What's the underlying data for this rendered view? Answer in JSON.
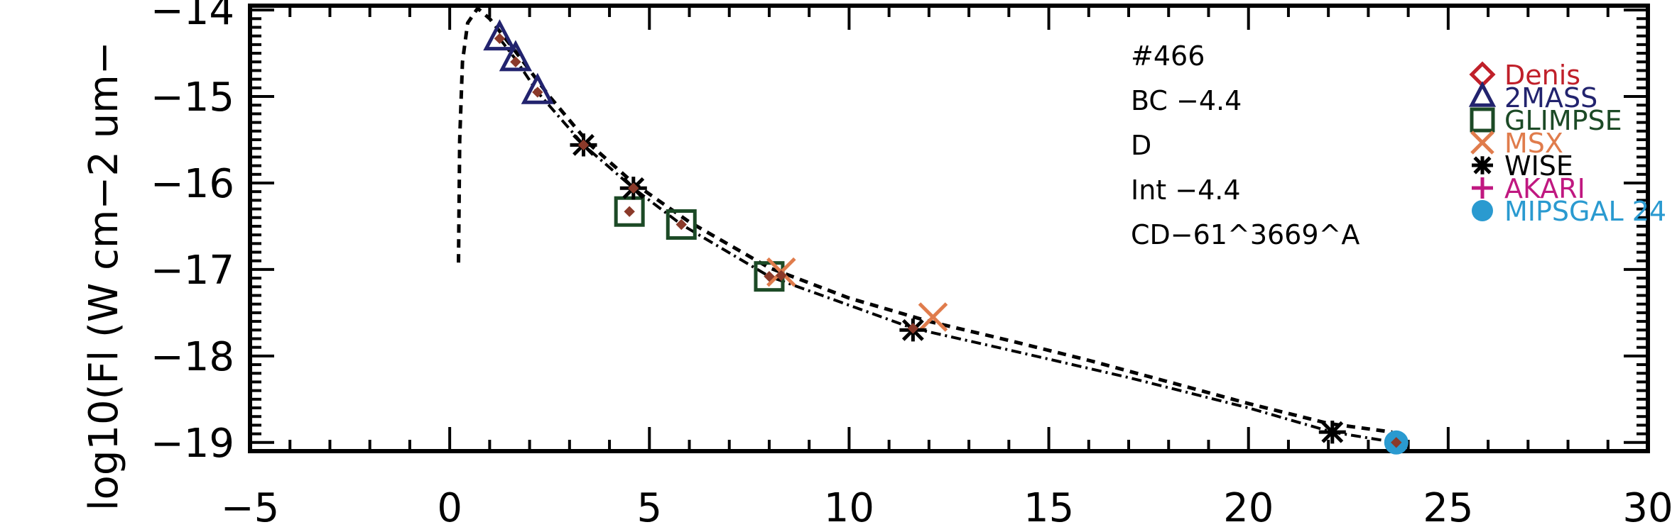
{
  "chart_data": {
    "type": "scatter",
    "title": "",
    "xlabel": "",
    "ylabel": "log10(Fl (W cm−2 um−",
    "xlim": [
      -5,
      30
    ],
    "ylim": [
      -19.1,
      -13.95
    ],
    "x_ticks": [
      -5,
      0,
      5,
      10,
      15,
      20,
      25,
      30
    ],
    "x_tick_labels": [
      "−5",
      "0",
      "5",
      "10",
      "15",
      "20",
      "25",
      "30"
    ],
    "y_ticks": [
      -19,
      -18,
      -17,
      -16,
      -15,
      -14
    ],
    "y_tick_labels": [
      "−19",
      "−18",
      "−17",
      "−16",
      "−15",
      "−14"
    ],
    "grid": false,
    "legend_placement": "top-right",
    "annotations": [
      "#466",
      "BC −4.4",
      "D",
      "Int −4.4",
      "CD−61^3669^A"
    ],
    "series": [
      {
        "name": "Denis",
        "marker": "diamond-open",
        "color": "#c0202a",
        "points": []
      },
      {
        "name": "2MASS",
        "marker": "triangle-open",
        "color": "#22236e",
        "points": [
          {
            "x": 1.25,
            "y": -14.33
          },
          {
            "x": 1.65,
            "y": -14.57
          },
          {
            "x": 2.2,
            "y": -14.95
          }
        ]
      },
      {
        "name": "GLIMPSE",
        "marker": "square-open",
        "color": "#1c4a26",
        "points": [
          {
            "x": 4.5,
            "y": -16.33
          },
          {
            "x": 5.8,
            "y": -16.48
          },
          {
            "x": 8.0,
            "y": -17.08
          }
        ]
      },
      {
        "name": "MSX",
        "marker": "x",
        "color": "#e07c4c",
        "points": [
          {
            "x": 8.3,
            "y": -17.03
          },
          {
            "x": 12.1,
            "y": -17.55
          }
        ]
      },
      {
        "name": "WISE",
        "marker": "asterisk",
        "color": "#000000",
        "points": [
          {
            "x": 3.35,
            "y": -15.56
          },
          {
            "x": 4.6,
            "y": -16.06
          },
          {
            "x": 11.6,
            "y": -17.7
          },
          {
            "x": 22.1,
            "y": -18.88
          }
        ]
      },
      {
        "name": "AKARI",
        "marker": "plus",
        "color": "#c01880",
        "points": []
      },
      {
        "name": "MIPSGAL 24",
        "marker": "circle-filled",
        "color": "#2a9ad0",
        "points": [
          {
            "x": 23.7,
            "y": -19.0
          }
        ]
      }
    ],
    "model_points": {
      "marker": "diamond-filled",
      "color": "#8b3a2a",
      "points": [
        {
          "x": 1.25,
          "y": -14.33
        },
        {
          "x": 1.65,
          "y": -14.6
        },
        {
          "x": 2.2,
          "y": -14.95
        },
        {
          "x": 3.35,
          "y": -15.56
        },
        {
          "x": 4.5,
          "y": -16.33
        },
        {
          "x": 4.6,
          "y": -16.06
        },
        {
          "x": 5.8,
          "y": -16.48
        },
        {
          "x": 8.0,
          "y": -17.08
        },
        {
          "x": 8.3,
          "y": -17.07
        },
        {
          "x": 11.6,
          "y": -17.68
        },
        {
          "x": 23.7,
          "y": -19.0
        }
      ]
    },
    "dashed_curve": [
      {
        "x": 0.22,
        "y": -16.92
      },
      {
        "x": 0.25,
        "y": -15.5
      },
      {
        "x": 0.32,
        "y": -14.6
      },
      {
        "x": 0.45,
        "y": -14.15
      },
      {
        "x": 0.7,
        "y": -13.98
      },
      {
        "x": 1.0,
        "y": -14.1
      },
      {
        "x": 1.6,
        "y": -14.45
      },
      {
        "x": 2.5,
        "y": -15.0
      },
      {
        "x": 3.5,
        "y": -15.55
      },
      {
        "x": 4.6,
        "y": -16.0
      },
      {
        "x": 6,
        "y": -16.45
      },
      {
        "x": 8,
        "y": -16.98
      },
      {
        "x": 10,
        "y": -17.33
      },
      {
        "x": 12,
        "y": -17.6
      },
      {
        "x": 14,
        "y": -17.82
      },
      {
        "x": 16,
        "y": -18.05
      },
      {
        "x": 18,
        "y": -18.3
      },
      {
        "x": 20,
        "y": -18.55
      },
      {
        "x": 22,
        "y": -18.78
      },
      {
        "x": 23.6,
        "y": -18.88
      }
    ],
    "dashdot_curve": [
      {
        "x": 1.25,
        "y": -14.33
      },
      {
        "x": 1.65,
        "y": -14.57
      },
      {
        "x": 2.2,
        "y": -14.95
      },
      {
        "x": 3.35,
        "y": -15.56
      },
      {
        "x": 4.6,
        "y": -16.06
      },
      {
        "x": 5.8,
        "y": -16.48
      },
      {
        "x": 8.0,
        "y": -17.08
      },
      {
        "x": 11.6,
        "y": -17.68
      },
      {
        "x": 14,
        "y": -17.93
      },
      {
        "x": 17,
        "y": -18.25
      },
      {
        "x": 20,
        "y": -18.6
      },
      {
        "x": 22.1,
        "y": -18.88
      },
      {
        "x": 23.7,
        "y": -19.0
      }
    ]
  }
}
